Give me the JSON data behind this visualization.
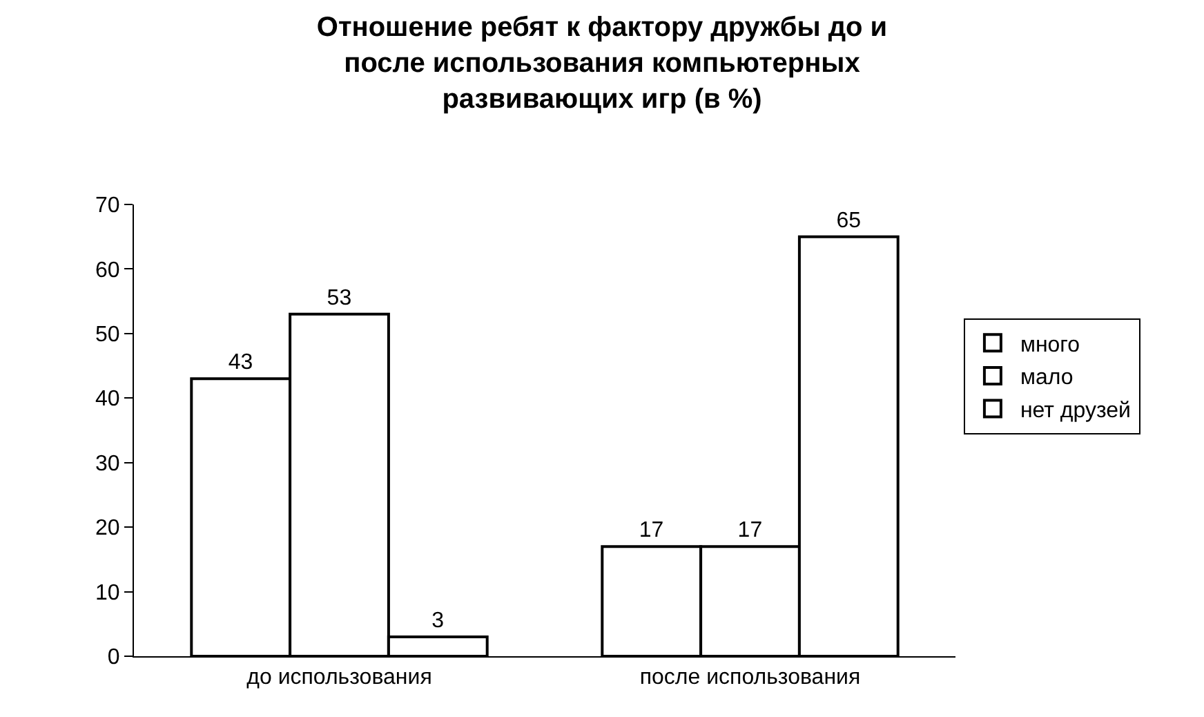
{
  "chart_data": {
    "type": "bar",
    "title": "Отношение ребят к фактору дружбы до и после использования компьютерных развивающих игр (в %)",
    "categories": [
      "до использования",
      "после использования"
    ],
    "series": [
      {
        "name": "много",
        "color": "#ffffff",
        "values": [
          43,
          17
        ]
      },
      {
        "name": "мало",
        "color": "#ffffff",
        "values": [
          53,
          17
        ]
      },
      {
        "name": "нет друзей",
        "color": "#ffffff",
        "values": [
          3,
          65
        ]
      }
    ],
    "ylim": [
      0,
      70
    ],
    "yticks": [
      0,
      10,
      20,
      30,
      40,
      50,
      60,
      70
    ],
    "data_labels": true,
    "grid": false,
    "legend": "right"
  }
}
